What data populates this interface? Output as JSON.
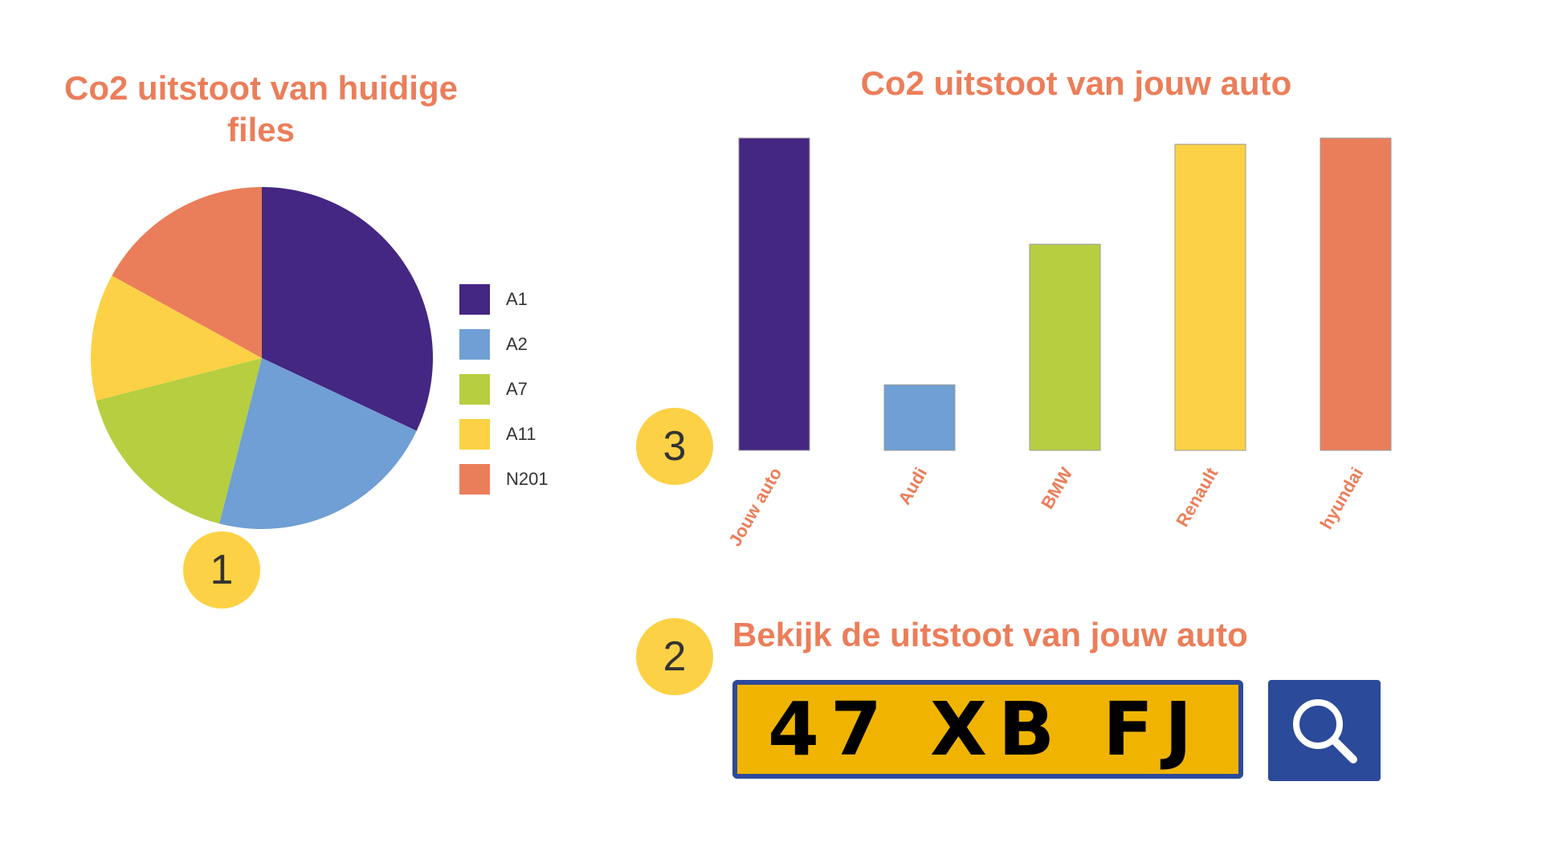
{
  "pie": {
    "title": "Co2 uitstoot van huidige files"
  },
  "bar": {
    "title": "Co2 uitstoot van jouw auto"
  },
  "search": {
    "title": "Bekijk de uitstoot van jouw auto",
    "plate_value": "47 XB FJ",
    "button_icon": "search-icon"
  },
  "badges": {
    "one": "1",
    "two": "2",
    "three": "3"
  },
  "colors": {
    "accent": "#EB7E5A",
    "badge": "#FDD145",
    "plate_bg": "#F0B400",
    "plate_border": "#2C4A9A",
    "button": "#2C4A9A"
  },
  "chart_data": [
    {
      "type": "pie",
      "title": "Co2 uitstoot van huidige files",
      "categories": [
        "A1",
        "A2",
        "A7",
        "A11",
        "N201"
      ],
      "values": [
        32,
        22,
        17,
        12,
        17
      ],
      "colors": [
        "#442683",
        "#6F9FD4",
        "#B6CE40",
        "#FDD145",
        "#EB7E5A"
      ],
      "legend": "right"
    },
    {
      "type": "bar",
      "title": "Co2 uitstoot van jouw auto",
      "categories": [
        "Jouw auto",
        "Audi",
        "BMW",
        "Renault",
        "hyundai"
      ],
      "values": [
        100,
        21,
        66,
        98,
        100
      ],
      "colors": [
        "#442683",
        "#6F9FD4",
        "#B6CE40",
        "#FDD145",
        "#EB7E5A"
      ],
      "ylim": [
        0,
        100
      ],
      "grid": false,
      "xlabel": "",
      "ylabel": ""
    }
  ]
}
